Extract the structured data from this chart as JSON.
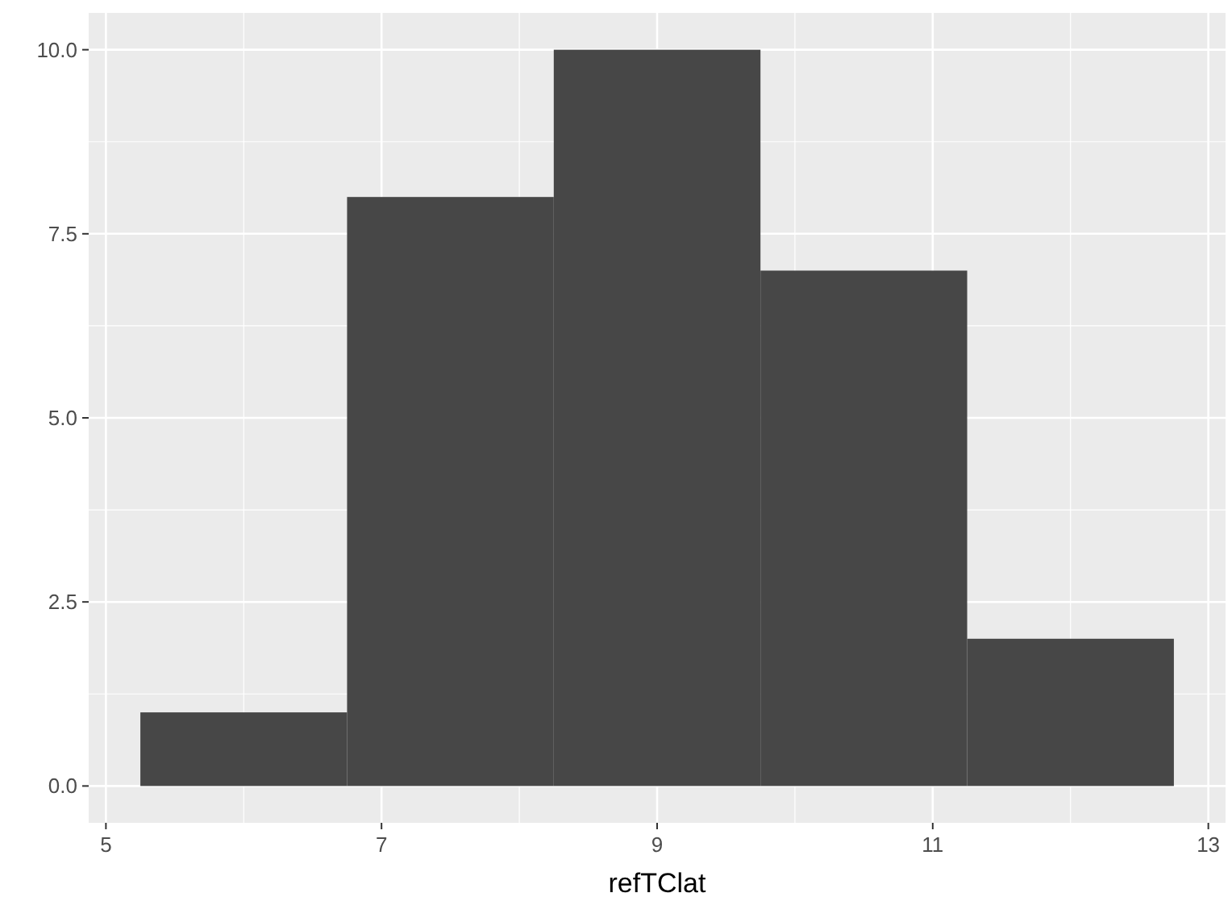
{
  "chart_data": {
    "type": "histogram",
    "xlabel": "refTClat",
    "bins": [
      5.25,
      6.75,
      8.25,
      9.75,
      11.25,
      12.75
    ],
    "values": [
      1,
      8,
      10,
      7,
      2
    ],
    "color": "#474747",
    "xlim": [
      4.875,
      13.125
    ],
    "xticks": [
      5,
      7,
      9,
      11,
      13
    ],
    "ylim": [
      -0.5,
      10.5
    ],
    "yticks": [
      {
        "value": 0,
        "label": "0.0"
      },
      {
        "value": 2.5,
        "label": "2.5"
      },
      {
        "value": 5,
        "label": "5.0"
      },
      {
        "value": 7.5,
        "label": "7.5"
      },
      {
        "value": 10,
        "label": "10.0"
      }
    ],
    "grid": true
  }
}
